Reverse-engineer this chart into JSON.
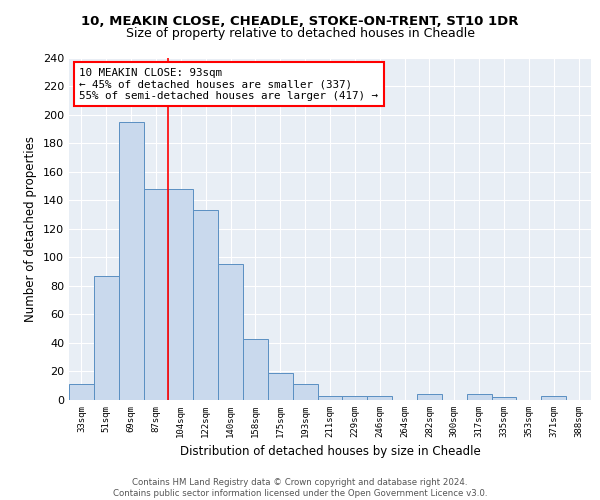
{
  "title1": "10, MEAKIN CLOSE, CHEADLE, STOKE-ON-TRENT, ST10 1DR",
  "title2": "Size of property relative to detached houses in Cheadle",
  "xlabel": "Distribution of detached houses by size in Cheadle",
  "ylabel": "Number of detached properties",
  "bar_labels": [
    "33sqm",
    "51sqm",
    "69sqm",
    "87sqm",
    "104sqm",
    "122sqm",
    "140sqm",
    "158sqm",
    "175sqm",
    "193sqm",
    "211sqm",
    "229sqm",
    "246sqm",
    "264sqm",
    "282sqm",
    "300sqm",
    "317sqm",
    "335sqm",
    "353sqm",
    "371sqm",
    "388sqm"
  ],
  "bar_values": [
    11,
    87,
    195,
    148,
    148,
    133,
    95,
    43,
    19,
    11,
    3,
    3,
    3,
    0,
    4,
    0,
    4,
    2,
    0,
    3,
    0
  ],
  "bar_color": "#c9d9ed",
  "bar_edge_color": "#5a8fc2",
  "vline_x": 3.5,
  "vline_color": "red",
  "annotation_line1": "10 MEAKIN CLOSE: 93sqm",
  "annotation_line2": "← 45% of detached houses are smaller (337)",
  "annotation_line3": "55% of semi-detached houses are larger (417) →",
  "annotation_box_color": "white",
  "annotation_box_edge": "red",
  "ylim": [
    0,
    240
  ],
  "yticks": [
    0,
    20,
    40,
    60,
    80,
    100,
    120,
    140,
    160,
    180,
    200,
    220,
    240
  ],
  "background_color": "#e8eef5",
  "grid_color": "white",
  "footer_text": "Contains HM Land Registry data © Crown copyright and database right 2024.\nContains public sector information licensed under the Open Government Licence v3.0."
}
